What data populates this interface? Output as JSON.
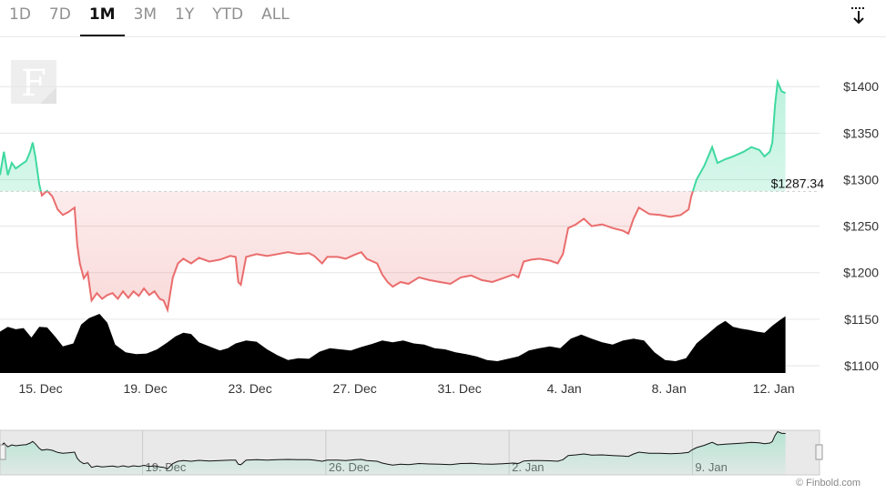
{
  "tabs": [
    {
      "label": "1D",
      "active": false
    },
    {
      "label": "7D",
      "active": false
    },
    {
      "label": "1M",
      "active": true
    },
    {
      "label": "3M",
      "active": false
    },
    {
      "label": "1Y",
      "active": false
    },
    {
      "label": "YTD",
      "active": false
    },
    {
      "label": "ALL",
      "active": false
    }
  ],
  "download_icon": "download-arrow-icon",
  "logo_letter": "F",
  "credits": "© Finbold.com",
  "colors": {
    "up_line": "#3fd9a0",
    "down_line": "#ea6d6d",
    "volume": "#000000",
    "grid": "#e6e6e6",
    "navigator_bg": "#e9e9e9"
  },
  "chart_data": {
    "type": "line",
    "reference_value": 1287.34,
    "reference_label": "$1287.34",
    "y_ticks": [
      {
        "value": 1100,
        "label": "$1100"
      },
      {
        "value": 1150,
        "label": "$1150"
      },
      {
        "value": 1200,
        "label": "$1200"
      },
      {
        "value": 1250,
        "label": "$1250"
      },
      {
        "value": 1300,
        "label": "$1300"
      },
      {
        "value": 1350,
        "label": "$1350"
      },
      {
        "value": 1400,
        "label": "$1400"
      }
    ],
    "ylim": [
      1100,
      1410
    ],
    "xlim": [
      0,
      31.3
    ],
    "x_ticks": [
      {
        "pos": 1.55,
        "label": "15. Dec"
      },
      {
        "pos": 5.55,
        "label": "19. Dec"
      },
      {
        "pos": 9.55,
        "label": "23. Dec"
      },
      {
        "pos": 13.55,
        "label": "27. Dec"
      },
      {
        "pos": 17.55,
        "label": "31. Dec"
      },
      {
        "pos": 21.55,
        "label": "4. Jan"
      },
      {
        "pos": 25.55,
        "label": "8. Jan"
      },
      {
        "pos": 29.55,
        "label": "12. Jan"
      }
    ],
    "navigator_ticks": [
      {
        "pos": 5.55,
        "label": "19. Dec"
      },
      {
        "pos": 12.55,
        "label": "26. Dec"
      },
      {
        "pos": 19.55,
        "label": "2. Jan"
      },
      {
        "pos": 26.55,
        "label": "9. Jan"
      }
    ],
    "price": [
      [
        0.0,
        1305
      ],
      [
        0.15,
        1330
      ],
      [
        0.3,
        1305
      ],
      [
        0.45,
        1318
      ],
      [
        0.6,
        1312
      ],
      [
        0.8,
        1316
      ],
      [
        1.0,
        1320
      ],
      [
        1.15,
        1330
      ],
      [
        1.25,
        1340
      ],
      [
        1.35,
        1325
      ],
      [
        1.5,
        1295
      ],
      [
        1.6,
        1283
      ],
      [
        1.8,
        1288
      ],
      [
        2.0,
        1282
      ],
      [
        2.2,
        1268
      ],
      [
        2.4,
        1262
      ],
      [
        2.6,
        1265
      ],
      [
        2.85,
        1270
      ],
      [
        2.95,
        1230
      ],
      [
        3.05,
        1210
      ],
      [
        3.2,
        1194
      ],
      [
        3.35,
        1200
      ],
      [
        3.5,
        1170
      ],
      [
        3.7,
        1178
      ],
      [
        3.9,
        1172
      ],
      [
        4.1,
        1176
      ],
      [
        4.3,
        1178
      ],
      [
        4.5,
        1172
      ],
      [
        4.7,
        1180
      ],
      [
        4.9,
        1173
      ],
      [
        5.1,
        1180
      ],
      [
        5.3,
        1175
      ],
      [
        5.5,
        1183
      ],
      [
        5.7,
        1176
      ],
      [
        5.9,
        1180
      ],
      [
        6.1,
        1172
      ],
      [
        6.25,
        1170
      ],
      [
        6.4,
        1160
      ],
      [
        6.6,
        1195
      ],
      [
        6.8,
        1210
      ],
      [
        7.0,
        1215
      ],
      [
        7.3,
        1210
      ],
      [
        7.6,
        1216
      ],
      [
        8.0,
        1212
      ],
      [
        8.4,
        1214
      ],
      [
        8.8,
        1218
      ],
      [
        9.0,
        1217
      ],
      [
        9.1,
        1190
      ],
      [
        9.2,
        1187
      ],
      [
        9.4,
        1217
      ],
      [
        9.8,
        1220
      ],
      [
        10.2,
        1218
      ],
      [
        10.6,
        1220
      ],
      [
        11.0,
        1222
      ],
      [
        11.4,
        1220
      ],
      [
        11.8,
        1221
      ],
      [
        12.0,
        1218
      ],
      [
        12.3,
        1210
      ],
      [
        12.5,
        1217
      ],
      [
        12.9,
        1217
      ],
      [
        13.2,
        1215
      ],
      [
        13.6,
        1220
      ],
      [
        13.8,
        1222
      ],
      [
        14.0,
        1215
      ],
      [
        14.4,
        1210
      ],
      [
        14.6,
        1198
      ],
      [
        14.8,
        1190
      ],
      [
        15.0,
        1185
      ],
      [
        15.3,
        1190
      ],
      [
        15.6,
        1188
      ],
      [
        16.0,
        1195
      ],
      [
        16.4,
        1192
      ],
      [
        16.8,
        1190
      ],
      [
        17.2,
        1188
      ],
      [
        17.6,
        1195
      ],
      [
        18.0,
        1197
      ],
      [
        18.4,
        1192
      ],
      [
        18.8,
        1190
      ],
      [
        19.2,
        1194
      ],
      [
        19.6,
        1198
      ],
      [
        19.8,
        1195
      ],
      [
        20.0,
        1212
      ],
      [
        20.3,
        1214
      ],
      [
        20.6,
        1215
      ],
      [
        21.0,
        1213
      ],
      [
        21.3,
        1210
      ],
      [
        21.5,
        1220
      ],
      [
        21.7,
        1248
      ],
      [
        22.0,
        1252
      ],
      [
        22.3,
        1258
      ],
      [
        22.6,
        1250
      ],
      [
        23.0,
        1252
      ],
      [
        23.4,
        1248
      ],
      [
        23.8,
        1245
      ],
      [
        24.0,
        1242
      ],
      [
        24.2,
        1258
      ],
      [
        24.4,
        1270
      ],
      [
        24.8,
        1263
      ],
      [
        25.2,
        1262
      ],
      [
        25.6,
        1260
      ],
      [
        26.0,
        1262
      ],
      [
        26.3,
        1268
      ],
      [
        26.4,
        1282
      ],
      [
        26.6,
        1300
      ],
      [
        26.9,
        1315
      ],
      [
        27.2,
        1335
      ],
      [
        27.4,
        1318
      ],
      [
        27.7,
        1322
      ],
      [
        28.0,
        1325
      ],
      [
        28.4,
        1330
      ],
      [
        28.7,
        1335
      ],
      [
        29.0,
        1332
      ],
      [
        29.2,
        1325
      ],
      [
        29.4,
        1330
      ],
      [
        29.5,
        1340
      ],
      [
        29.6,
        1380
      ],
      [
        29.7,
        1405
      ],
      [
        29.85,
        1395
      ],
      [
        30.0,
        1393
      ]
    ],
    "volume_scale": "relative",
    "volume": [
      [
        0.0,
        0.7
      ],
      [
        0.3,
        0.78
      ],
      [
        0.6,
        0.74
      ],
      [
        0.9,
        0.76
      ],
      [
        1.2,
        0.6
      ],
      [
        1.5,
        0.78
      ],
      [
        1.8,
        0.77
      ],
      [
        2.1,
        0.62
      ],
      [
        2.4,
        0.45
      ],
      [
        2.8,
        0.5
      ],
      [
        3.1,
        0.82
      ],
      [
        3.4,
        0.93
      ],
      [
        3.8,
        1.0
      ],
      [
        4.1,
        0.85
      ],
      [
        4.4,
        0.48
      ],
      [
        4.8,
        0.35
      ],
      [
        5.2,
        0.32
      ],
      [
        5.6,
        0.33
      ],
      [
        6.0,
        0.4
      ],
      [
        6.4,
        0.52
      ],
      [
        6.7,
        0.62
      ],
      [
        7.0,
        0.68
      ],
      [
        7.3,
        0.66
      ],
      [
        7.6,
        0.52
      ],
      [
        8.0,
        0.45
      ],
      [
        8.4,
        0.38
      ],
      [
        8.7,
        0.42
      ],
      [
        9.0,
        0.5
      ],
      [
        9.4,
        0.55
      ],
      [
        9.8,
        0.53
      ],
      [
        10.2,
        0.4
      ],
      [
        10.6,
        0.3
      ],
      [
        11.0,
        0.22
      ],
      [
        11.4,
        0.25
      ],
      [
        11.8,
        0.24
      ],
      [
        12.2,
        0.36
      ],
      [
        12.6,
        0.42
      ],
      [
        13.0,
        0.4
      ],
      [
        13.4,
        0.38
      ],
      [
        13.8,
        0.44
      ],
      [
        14.2,
        0.49
      ],
      [
        14.6,
        0.55
      ],
      [
        15.0,
        0.52
      ],
      [
        15.4,
        0.55
      ],
      [
        15.8,
        0.5
      ],
      [
        16.2,
        0.48
      ],
      [
        16.6,
        0.42
      ],
      [
        17.0,
        0.4
      ],
      [
        17.4,
        0.35
      ],
      [
        17.8,
        0.32
      ],
      [
        18.2,
        0.28
      ],
      [
        18.6,
        0.22
      ],
      [
        19.0,
        0.2
      ],
      [
        19.4,
        0.24
      ],
      [
        19.8,
        0.28
      ],
      [
        20.2,
        0.38
      ],
      [
        20.6,
        0.42
      ],
      [
        21.0,
        0.45
      ],
      [
        21.4,
        0.42
      ],
      [
        21.8,
        0.58
      ],
      [
        22.2,
        0.65
      ],
      [
        22.6,
        0.58
      ],
      [
        23.0,
        0.52
      ],
      [
        23.4,
        0.48
      ],
      [
        23.8,
        0.55
      ],
      [
        24.2,
        0.58
      ],
      [
        24.6,
        0.55
      ],
      [
        25.0,
        0.35
      ],
      [
        25.4,
        0.22
      ],
      [
        25.8,
        0.2
      ],
      [
        26.2,
        0.25
      ],
      [
        26.6,
        0.5
      ],
      [
        27.0,
        0.65
      ],
      [
        27.4,
        0.8
      ],
      [
        27.7,
        0.88
      ],
      [
        28.0,
        0.78
      ],
      [
        28.3,
        0.75
      ],
      [
        28.6,
        0.73
      ],
      [
        28.9,
        0.7
      ],
      [
        29.2,
        0.68
      ],
      [
        29.5,
        0.8
      ],
      [
        29.8,
        0.9
      ],
      [
        30.0,
        0.96
      ]
    ]
  }
}
